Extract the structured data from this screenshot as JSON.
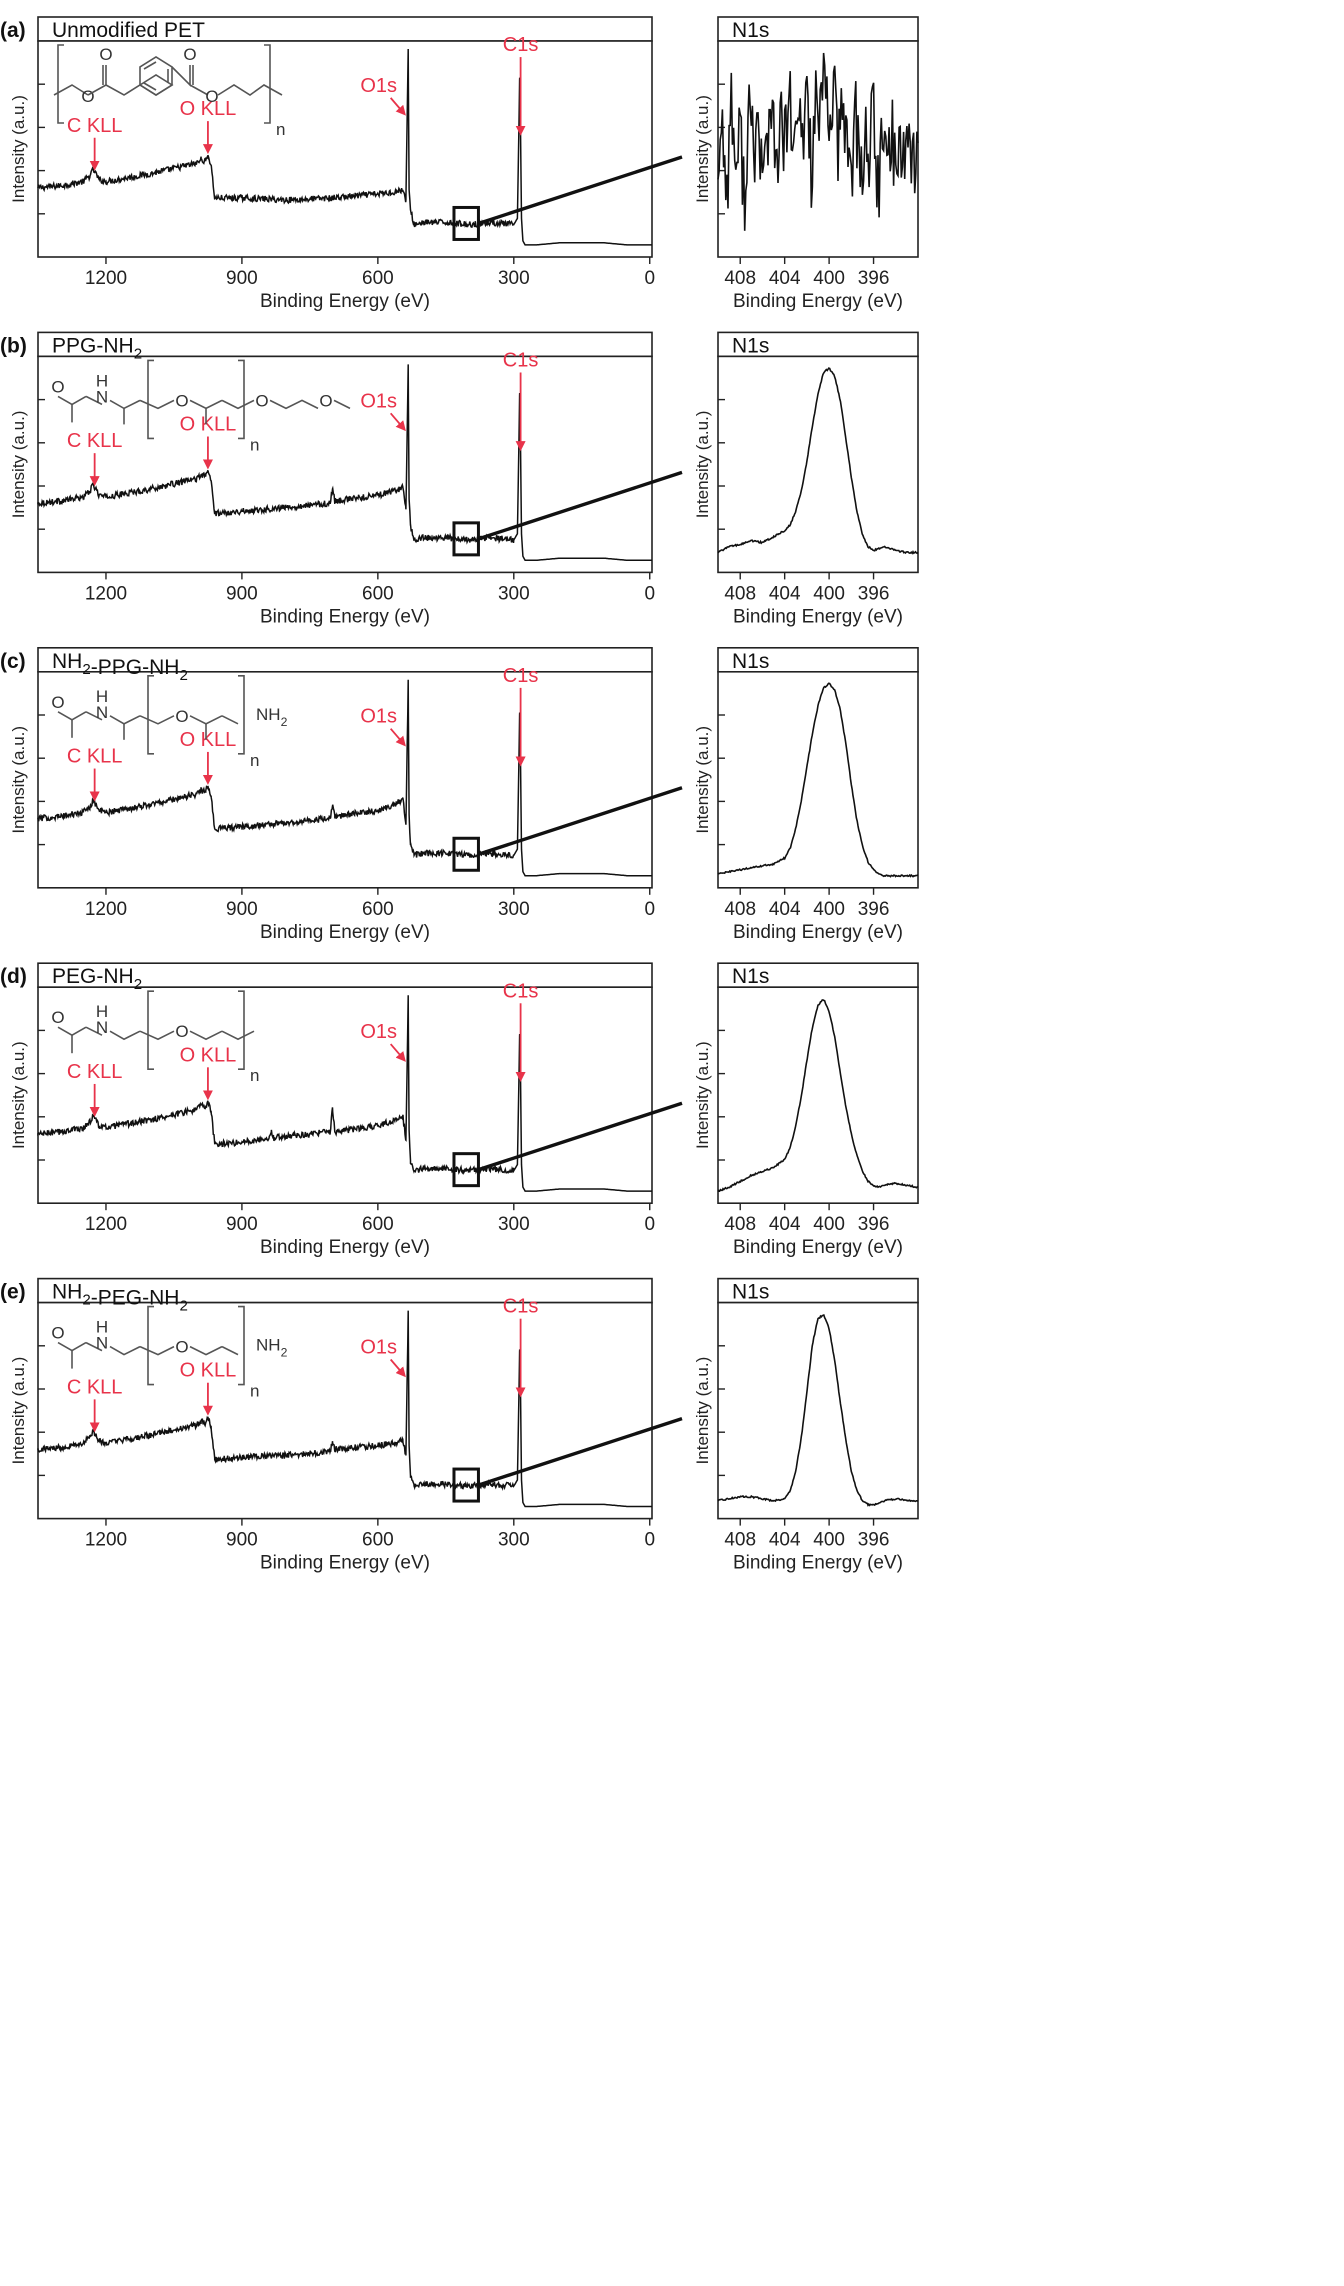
{
  "colors": {
    "annotation": "#e8334a",
    "line": "#111111",
    "frame": "#222222",
    "structure": "#555555"
  },
  "chart_data": [
    {
      "type": "line",
      "panel_label": "(a)",
      "title": "Unmodified PET",
      "xlabel": "Binding Energy (eV)",
      "ylabel": "Intensity (a.u.)",
      "x_reversed": true,
      "xlim": [
        1350,
        -5
      ],
      "xticks": [
        1200,
        900,
        600,
        300,
        0
      ],
      "structure": "pet",
      "annotations": [
        {
          "text": "C KLL",
          "x": 1225
        },
        {
          "text": "O KLL",
          "x": 975
        },
        {
          "text": "O1s",
          "x": 532
        },
        {
          "text": "C1s",
          "x": 285
        }
      ],
      "series": [
        {
          "x": [
            1350,
            1300,
            1250,
            1235,
            1228,
            1215,
            1200,
            1100,
            1000,
            990,
            980,
            975,
            968,
            960,
            900,
            800,
            700,
            600,
            560,
            545,
            538,
            533,
            531,
            528,
            520,
            500,
            450,
            400,
            350,
            300,
            292,
            287,
            285,
            283,
            280,
            275,
            250,
            200,
            100,
            50,
            0
          ],
          "y": [
            0.31,
            0.32,
            0.34,
            0.37,
            0.4,
            0.35,
            0.34,
            0.38,
            0.43,
            0.45,
            0.44,
            0.47,
            0.42,
            0.26,
            0.26,
            0.25,
            0.26,
            0.28,
            0.29,
            0.3,
            0.25,
            0.99,
            0.3,
            0.2,
            0.13,
            0.14,
            0.14,
            0.13,
            0.14,
            0.13,
            0.16,
            0.85,
            0.56,
            0.16,
            0.05,
            0.03,
            0.03,
            0.04,
            0.04,
            0.03,
            0.03
          ]
        }
      ],
      "inset": {
        "title": "N1s",
        "xlabel": "Binding Energy (eV)",
        "ylabel": "Intensity (a.u.)",
        "xlim": [
          410,
          392
        ],
        "xticks": [
          408,
          404,
          400,
          396
        ],
        "series": [
          {
            "x": [
              410,
              409.6,
              409.2,
              408.8,
              408.4,
              408,
              407.6,
              407.2,
              406.8,
              406.4,
              406,
              405.6,
              405.2,
              404.8,
              404.4,
              404,
              403.6,
              403.2,
              402.8,
              402.4,
              402,
              401.6,
              401.2,
              400.8,
              400.4,
              400,
              399.6,
              399.2,
              398.8,
              398.4,
              398,
              397.6,
              397.2,
              396.8,
              396.4,
              396,
              395.6,
              395.2,
              394.8,
              394.4,
              394,
              393.6,
              393.2,
              392.8,
              392.4,
              392
            ],
            "y": [
              0.45,
              0.62,
              0.3,
              0.75,
              0.4,
              0.58,
              0.28,
              0.7,
              0.47,
              0.66,
              0.33,
              0.55,
              0.72,
              0.38,
              0.64,
              0.5,
              0.8,
              0.42,
              0.68,
              0.52,
              0.85,
              0.4,
              0.74,
              0.6,
              0.92,
              0.56,
              0.88,
              0.46,
              0.7,
              0.58,
              0.4,
              0.66,
              0.3,
              0.6,
              0.48,
              0.7,
              0.28,
              0.55,
              0.42,
              0.63,
              0.36,
              0.58,
              0.48,
              0.6,
              0.44,
              0.52
            ]
          }
        ]
      }
    },
    {
      "type": "line",
      "panel_label": "(b)",
      "title": "PPG-NH2",
      "xlabel": "Binding Energy (eV)",
      "ylabel": "Intensity (a.u.)",
      "x_reversed": true,
      "xlim": [
        1350,
        -5
      ],
      "xticks": [
        1200,
        900,
        600,
        300,
        0
      ],
      "structure": "ppg",
      "annotations": [
        {
          "text": "C KLL",
          "x": 1225
        },
        {
          "text": "O KLL",
          "x": 975
        },
        {
          "text": "O1s",
          "x": 532
        },
        {
          "text": "C1s",
          "x": 285
        }
      ],
      "series": [
        {
          "x": [
            1350,
            1300,
            1250,
            1235,
            1228,
            1215,
            1200,
            1100,
            1000,
            990,
            980,
            975,
            968,
            960,
            900,
            800,
            705,
            700,
            695,
            600,
            560,
            545,
            538,
            533,
            531,
            528,
            520,
            500,
            450,
            400,
            350,
            300,
            292,
            287,
            285,
            283,
            280,
            275,
            250,
            200,
            100,
            50,
            0
          ],
          "y": [
            0.31,
            0.32,
            0.34,
            0.37,
            0.4,
            0.35,
            0.34,
            0.38,
            0.43,
            0.45,
            0.44,
            0.47,
            0.42,
            0.26,
            0.27,
            0.29,
            0.31,
            0.38,
            0.32,
            0.35,
            0.37,
            0.39,
            0.28,
            0.99,
            0.33,
            0.2,
            0.13,
            0.14,
            0.14,
            0.13,
            0.14,
            0.13,
            0.16,
            0.85,
            0.56,
            0.16,
            0.05,
            0.03,
            0.03,
            0.04,
            0.04,
            0.03,
            0.03
          ]
        }
      ],
      "inset": {
        "title": "N1s",
        "xlabel": "Binding Energy (eV)",
        "ylabel": "Intensity (a.u.)",
        "xlim": [
          410,
          392
        ],
        "xticks": [
          408,
          404,
          400,
          396
        ],
        "series": [
          {
            "x": [
              410,
              409,
              408,
              407,
              406,
              405,
              404,
              403.5,
              403,
              402.5,
              402,
              401.5,
              401,
              400.5,
              400,
              399.5,
              399,
              398.5,
              398,
              397.5,
              397,
              396.5,
              396,
              395.5,
              395,
              394,
              393,
              392
            ],
            "y": [
              0.06,
              0.09,
              0.1,
              0.12,
              0.11,
              0.14,
              0.17,
              0.2,
              0.27,
              0.37,
              0.52,
              0.7,
              0.86,
              0.97,
              0.99,
              0.95,
              0.83,
              0.64,
              0.44,
              0.27,
              0.15,
              0.09,
              0.07,
              0.08,
              0.09,
              0.07,
              0.06,
              0.06
            ]
          }
        ]
      }
    },
    {
      "type": "line",
      "panel_label": "(c)",
      "title": "NH2-PPG-NH2",
      "xlabel": "Binding Energy (eV)",
      "ylabel": "Intensity (a.u.)",
      "x_reversed": true,
      "xlim": [
        1350,
        -5
      ],
      "xticks": [
        1200,
        900,
        600,
        300,
        0
      ],
      "structure": "ppg_nh2",
      "annotations": [
        {
          "text": "C KLL",
          "x": 1225
        },
        {
          "text": "O KLL",
          "x": 975
        },
        {
          "text": "O1s",
          "x": 532
        },
        {
          "text": "C1s",
          "x": 285
        }
      ],
      "series": [
        {
          "x": [
            1350,
            1300,
            1250,
            1235,
            1228,
            1215,
            1200,
            1100,
            1000,
            990,
            980,
            975,
            968,
            960,
            900,
            800,
            705,
            700,
            695,
            600,
            560,
            545,
            538,
            533,
            531,
            528,
            520,
            500,
            450,
            400,
            350,
            300,
            292,
            287,
            285,
            283,
            280,
            275,
            250,
            200,
            100,
            50,
            0
          ],
          "y": [
            0.31,
            0.32,
            0.34,
            0.37,
            0.4,
            0.35,
            0.34,
            0.38,
            0.43,
            0.45,
            0.44,
            0.47,
            0.42,
            0.26,
            0.27,
            0.29,
            0.31,
            0.37,
            0.32,
            0.35,
            0.38,
            0.41,
            0.28,
            0.99,
            0.33,
            0.18,
            0.13,
            0.14,
            0.14,
            0.13,
            0.14,
            0.13,
            0.16,
            0.83,
            0.56,
            0.16,
            0.05,
            0.03,
            0.03,
            0.04,
            0.04,
            0.03,
            0.03
          ]
        }
      ],
      "inset": {
        "title": "N1s",
        "xlabel": "Binding Energy (eV)",
        "ylabel": "Intensity (a.u.)",
        "xlim": [
          410,
          392
        ],
        "xticks": [
          408,
          404,
          400,
          396
        ],
        "series": [
          {
            "x": [
              410,
              409,
              408,
              407,
              406,
              405,
              404,
              403.5,
              403,
              402.5,
              402,
              401.5,
              401,
              400.5,
              400,
              399.5,
              399,
              398.5,
              398,
              397.5,
              397,
              396.5,
              396,
              395.5,
              395,
              394,
              393,
              392
            ],
            "y": [
              0.03,
              0.04,
              0.05,
              0.06,
              0.07,
              0.08,
              0.11,
              0.16,
              0.26,
              0.4,
              0.57,
              0.74,
              0.88,
              0.97,
              0.99,
              0.96,
              0.86,
              0.69,
              0.48,
              0.3,
              0.17,
              0.09,
              0.05,
              0.03,
              0.02,
              0.02,
              0.02,
              0.02
            ]
          }
        ]
      }
    },
    {
      "type": "line",
      "panel_label": "(d)",
      "title": "PEG-NH2",
      "xlabel": "Binding Energy (eV)",
      "ylabel": "Intensity (a.u.)",
      "x_reversed": true,
      "xlim": [
        1350,
        -5
      ],
      "xticks": [
        1200,
        900,
        600,
        300,
        0
      ],
      "structure": "peg",
      "annotations": [
        {
          "text": "C KLL",
          "x": 1225
        },
        {
          "text": "O KLL",
          "x": 975
        },
        {
          "text": "O1s",
          "x": 532
        },
        {
          "text": "C1s",
          "x": 285
        }
      ],
      "series": [
        {
          "x": [
            1350,
            1300,
            1250,
            1235,
            1228,
            1215,
            1200,
            1100,
            1000,
            990,
            980,
            975,
            968,
            960,
            900,
            840,
            835,
            830,
            800,
            705,
            700,
            695,
            600,
            560,
            545,
            538,
            533,
            531,
            528,
            520,
            500,
            450,
            400,
            350,
            300,
            292,
            287,
            285,
            283,
            280,
            275,
            250,
            200,
            100,
            50,
            0
          ],
          "y": [
            0.31,
            0.32,
            0.34,
            0.37,
            0.4,
            0.35,
            0.34,
            0.38,
            0.43,
            0.45,
            0.44,
            0.47,
            0.42,
            0.26,
            0.27,
            0.29,
            0.33,
            0.29,
            0.3,
            0.32,
            0.44,
            0.32,
            0.35,
            0.38,
            0.4,
            0.28,
            0.99,
            0.33,
            0.18,
            0.13,
            0.14,
            0.14,
            0.13,
            0.14,
            0.13,
            0.16,
            0.8,
            0.56,
            0.16,
            0.05,
            0.03,
            0.03,
            0.04,
            0.04,
            0.03,
            0.03
          ]
        }
      ],
      "inset": {
        "title": "N1s",
        "xlabel": "Binding Energy (eV)",
        "ylabel": "Intensity (a.u.)",
        "xlim": [
          410,
          392
        ],
        "xticks": [
          408,
          404,
          400,
          396
        ],
        "series": [
          {
            "x": [
              410,
              409,
              408,
              407,
              406,
              405,
              404,
              403.5,
              403,
              402.5,
              402,
              401.5,
              401,
              400.5,
              400,
              399.5,
              399,
              398.5,
              398,
              397.5,
              397,
              396.5,
              396,
              395.5,
              395,
              394,
              393,
              392
            ],
            "y": [
              0.02,
              0.04,
              0.07,
              0.1,
              0.12,
              0.14,
              0.18,
              0.24,
              0.35,
              0.5,
              0.68,
              0.85,
              0.96,
              0.99,
              0.93,
              0.8,
              0.62,
              0.45,
              0.31,
              0.2,
              0.12,
              0.07,
              0.05,
              0.04,
              0.05,
              0.06,
              0.05,
              0.04
            ]
          }
        ]
      }
    },
    {
      "type": "line",
      "panel_label": "(e)",
      "title": "NH2-PEG-NH2",
      "xlabel": "Binding Energy (eV)",
      "ylabel": "Intensity (a.u.)",
      "x_reversed": true,
      "xlim": [
        1350,
        -5
      ],
      "xticks": [
        1200,
        900,
        600,
        300,
        0
      ],
      "structure": "peg_nh2",
      "annotations": [
        {
          "text": "C KLL",
          "x": 1225
        },
        {
          "text": "O KLL",
          "x": 975
        },
        {
          "text": "O1s",
          "x": 532
        },
        {
          "text": "C1s",
          "x": 285
        }
      ],
      "series": [
        {
          "x": [
            1350,
            1300,
            1250,
            1235,
            1228,
            1215,
            1200,
            1100,
            1000,
            990,
            980,
            975,
            968,
            960,
            900,
            800,
            705,
            700,
            695,
            600,
            560,
            545,
            538,
            533,
            531,
            528,
            520,
            500,
            450,
            400,
            350,
            300,
            292,
            287,
            285,
            283,
            280,
            275,
            250,
            200,
            100,
            50,
            0
          ],
          "y": [
            0.31,
            0.32,
            0.34,
            0.37,
            0.4,
            0.35,
            0.34,
            0.38,
            0.43,
            0.45,
            0.44,
            0.47,
            0.42,
            0.26,
            0.27,
            0.28,
            0.3,
            0.35,
            0.31,
            0.33,
            0.34,
            0.36,
            0.28,
            0.99,
            0.33,
            0.18,
            0.13,
            0.14,
            0.14,
            0.13,
            0.14,
            0.13,
            0.16,
            0.8,
            0.56,
            0.16,
            0.05,
            0.03,
            0.03,
            0.04,
            0.04,
            0.03,
            0.03
          ]
        }
      ],
      "inset": {
        "title": "N1s",
        "xlabel": "Binding Energy (eV)",
        "ylabel": "Intensity (a.u.)",
        "xlim": [
          410,
          392
        ],
        "xticks": [
          408,
          404,
          400,
          396
        ],
        "series": [
          {
            "x": [
              410,
              409,
              408,
              407,
              406,
              405,
              404,
              403.5,
              403,
              402.5,
              402,
              401.5,
              401,
              400.5,
              400,
              399.5,
              399,
              398.5,
              398,
              397.5,
              397,
              396.5,
              396,
              395.5,
              395,
              394,
              393,
              392
            ],
            "y": [
              0.05,
              0.06,
              0.07,
              0.07,
              0.06,
              0.05,
              0.06,
              0.1,
              0.2,
              0.37,
              0.6,
              0.84,
              0.97,
              0.99,
              0.92,
              0.76,
              0.55,
              0.36,
              0.2,
              0.1,
              0.05,
              0.03,
              0.03,
              0.04,
              0.05,
              0.06,
              0.05,
              0.05
            ]
          }
        ]
      }
    }
  ]
}
